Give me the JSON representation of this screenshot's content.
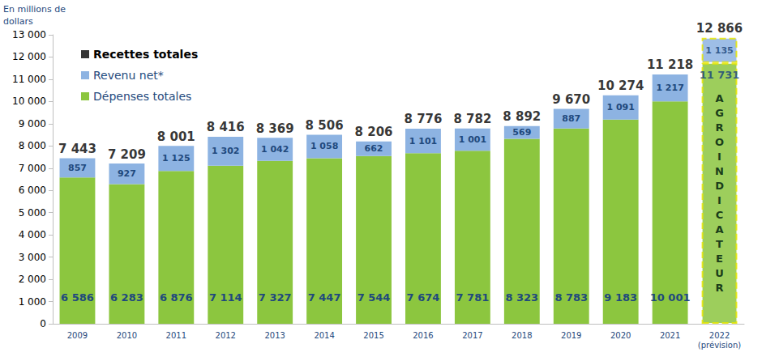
{
  "chart_data": {
    "type": "bar",
    "stacked": true,
    "data_labels": true,
    "grid": false,
    "legend": "top-left",
    "y_label": "En millions de dollars",
    "categories": [
      "2009",
      "2010",
      "2011",
      "2012",
      "2013",
      "2014",
      "2015",
      "2016",
      "2017",
      "2018",
      "2019",
      "2020",
      "2021",
      "2022\n(prévision)"
    ],
    "series": [
      {
        "name": "Dépenses totales",
        "color": "#8cc63f",
        "values": [
          6586,
          6283,
          6876,
          7114,
          7327,
          7447,
          7544,
          7674,
          7781,
          8323,
          8783,
          9183,
          10001,
          11731
        ],
        "value_labels": [
          "6 586",
          "6 283",
          "6 876",
          "7 114",
          "7 327",
          "7 447",
          "7 544",
          "7 674",
          "7 781",
          "8 323",
          "8 783",
          "9 183",
          "10 001",
          "11 731"
        ]
      },
      {
        "name": "Revenu net*",
        "color": "#8db3e2",
        "values": [
          857,
          927,
          1125,
          1302,
          1042,
          1058,
          662,
          1101,
          1001,
          569,
          887,
          1091,
          1217,
          1135
        ],
        "value_labels": [
          "857",
          "927",
          "1 125",
          "1 302",
          "1 042",
          "1 058",
          "662",
          "1 101",
          "1 001",
          "569",
          "887",
          "1 091",
          "1 217",
          "1 135"
        ]
      }
    ],
    "totals": {
      "name": "Recettes totales",
      "color": "#000000",
      "values": [
        7443,
        7209,
        8001,
        8416,
        8369,
        8506,
        8206,
        8776,
        8782,
        8892,
        9670,
        10274,
        11218,
        12866
      ],
      "value_labels": [
        "7 443",
        "7 209",
        "8 001",
        "8 416",
        "8 369",
        "8 506",
        "8 206",
        "8 776",
        "8 782",
        "8 892",
        "9 670",
        "10 274",
        "11 218",
        "12 866"
      ]
    },
    "ylim": [
      0,
      13000
    ],
    "yticks": [
      0,
      {
        "value": 1000,
        "label": "1 000"
      },
      {
        "value": 2000,
        "label": "2 000"
      },
      {
        "value": 3000,
        "label": "3 000"
      },
      {
        "value": 4000,
        "label": "4 000"
      },
      {
        "value": 5000,
        "label": "5 000"
      },
      {
        "value": 6000,
        "label": "6 000"
      },
      {
        "value": 7000,
        "label": "7 000"
      },
      {
        "value": 8000,
        "label": "8 000"
      },
      {
        "value": 9000,
        "label": "9 000"
      },
      {
        "value": 10000,
        "label": "10 000"
      },
      {
        "value": 11000,
        "label": "11 000"
      },
      {
        "value": 12000,
        "label": "12 000"
      },
      {
        "value": 13000,
        "label": "13 000"
      }
    ],
    "annotations": [
      {
        "text": "AGROINDICATEUR",
        "category": "2022\n(prévision)"
      }
    ]
  }
}
